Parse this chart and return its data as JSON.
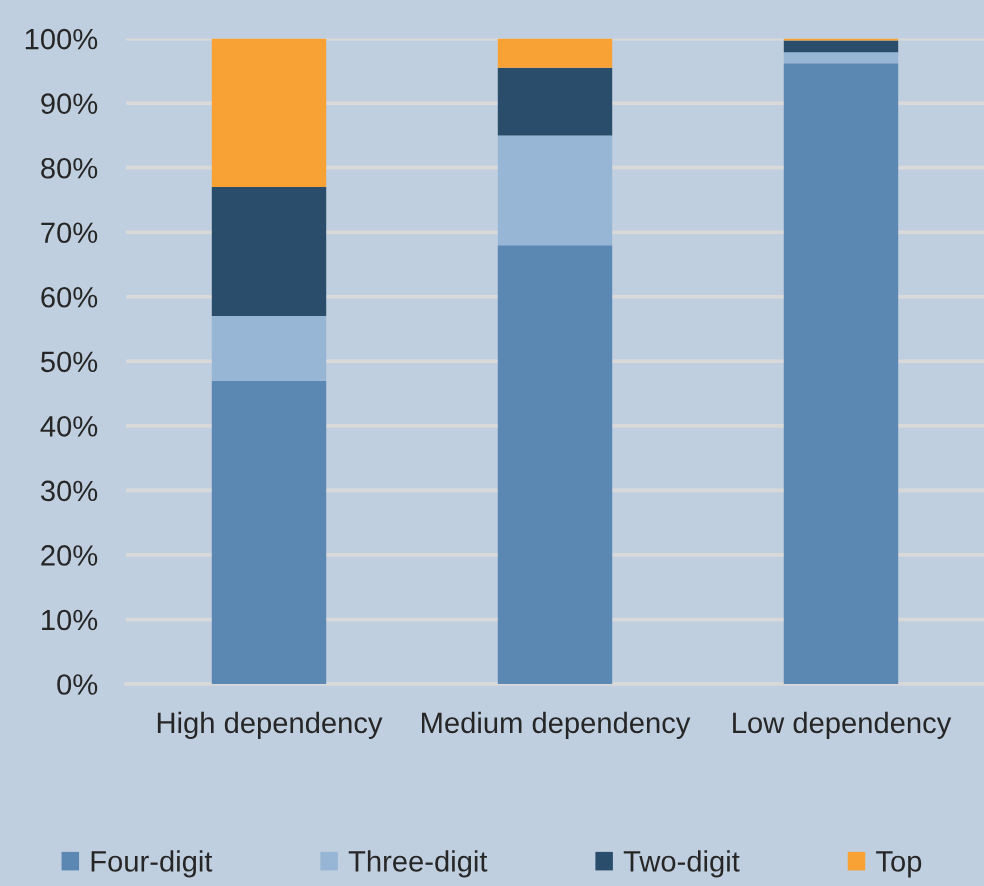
{
  "chart_data": {
    "type": "bar",
    "stacked": true,
    "categories": [
      "High dependency",
      "Medium dependency",
      "Low dependency"
    ],
    "series": [
      {
        "name": "Four-digit",
        "color": "#5b87b3",
        "values": [
          47,
          68,
          96.2
        ]
      },
      {
        "name": "Three-digit",
        "color": "#97b6d6",
        "values": [
          10,
          17,
          1.7
        ]
      },
      {
        "name": "Two-digit",
        "color": "#2a4d6b",
        "values": [
          20,
          10.5,
          1.8
        ]
      },
      {
        "name": "Top",
        "color": "#f8a235",
        "values": [
          23,
          4.5,
          0.3
        ]
      }
    ],
    "ylim": [
      0,
      100
    ],
    "yticks": [
      {
        "value": 0,
        "label": "0%"
      },
      {
        "value": 10,
        "label": "10%"
      },
      {
        "value": 20,
        "label": "20%"
      },
      {
        "value": 30,
        "label": "30%"
      },
      {
        "value": 40,
        "label": "40%"
      },
      {
        "value": 50,
        "label": "50%"
      },
      {
        "value": 60,
        "label": "60%"
      },
      {
        "value": 70,
        "label": "70%"
      },
      {
        "value": 80,
        "label": "80%"
      },
      {
        "value": 90,
        "label": "90%"
      },
      {
        "value": 100,
        "label": "100%"
      }
    ],
    "grid": "y",
    "legend": "bottom"
  }
}
